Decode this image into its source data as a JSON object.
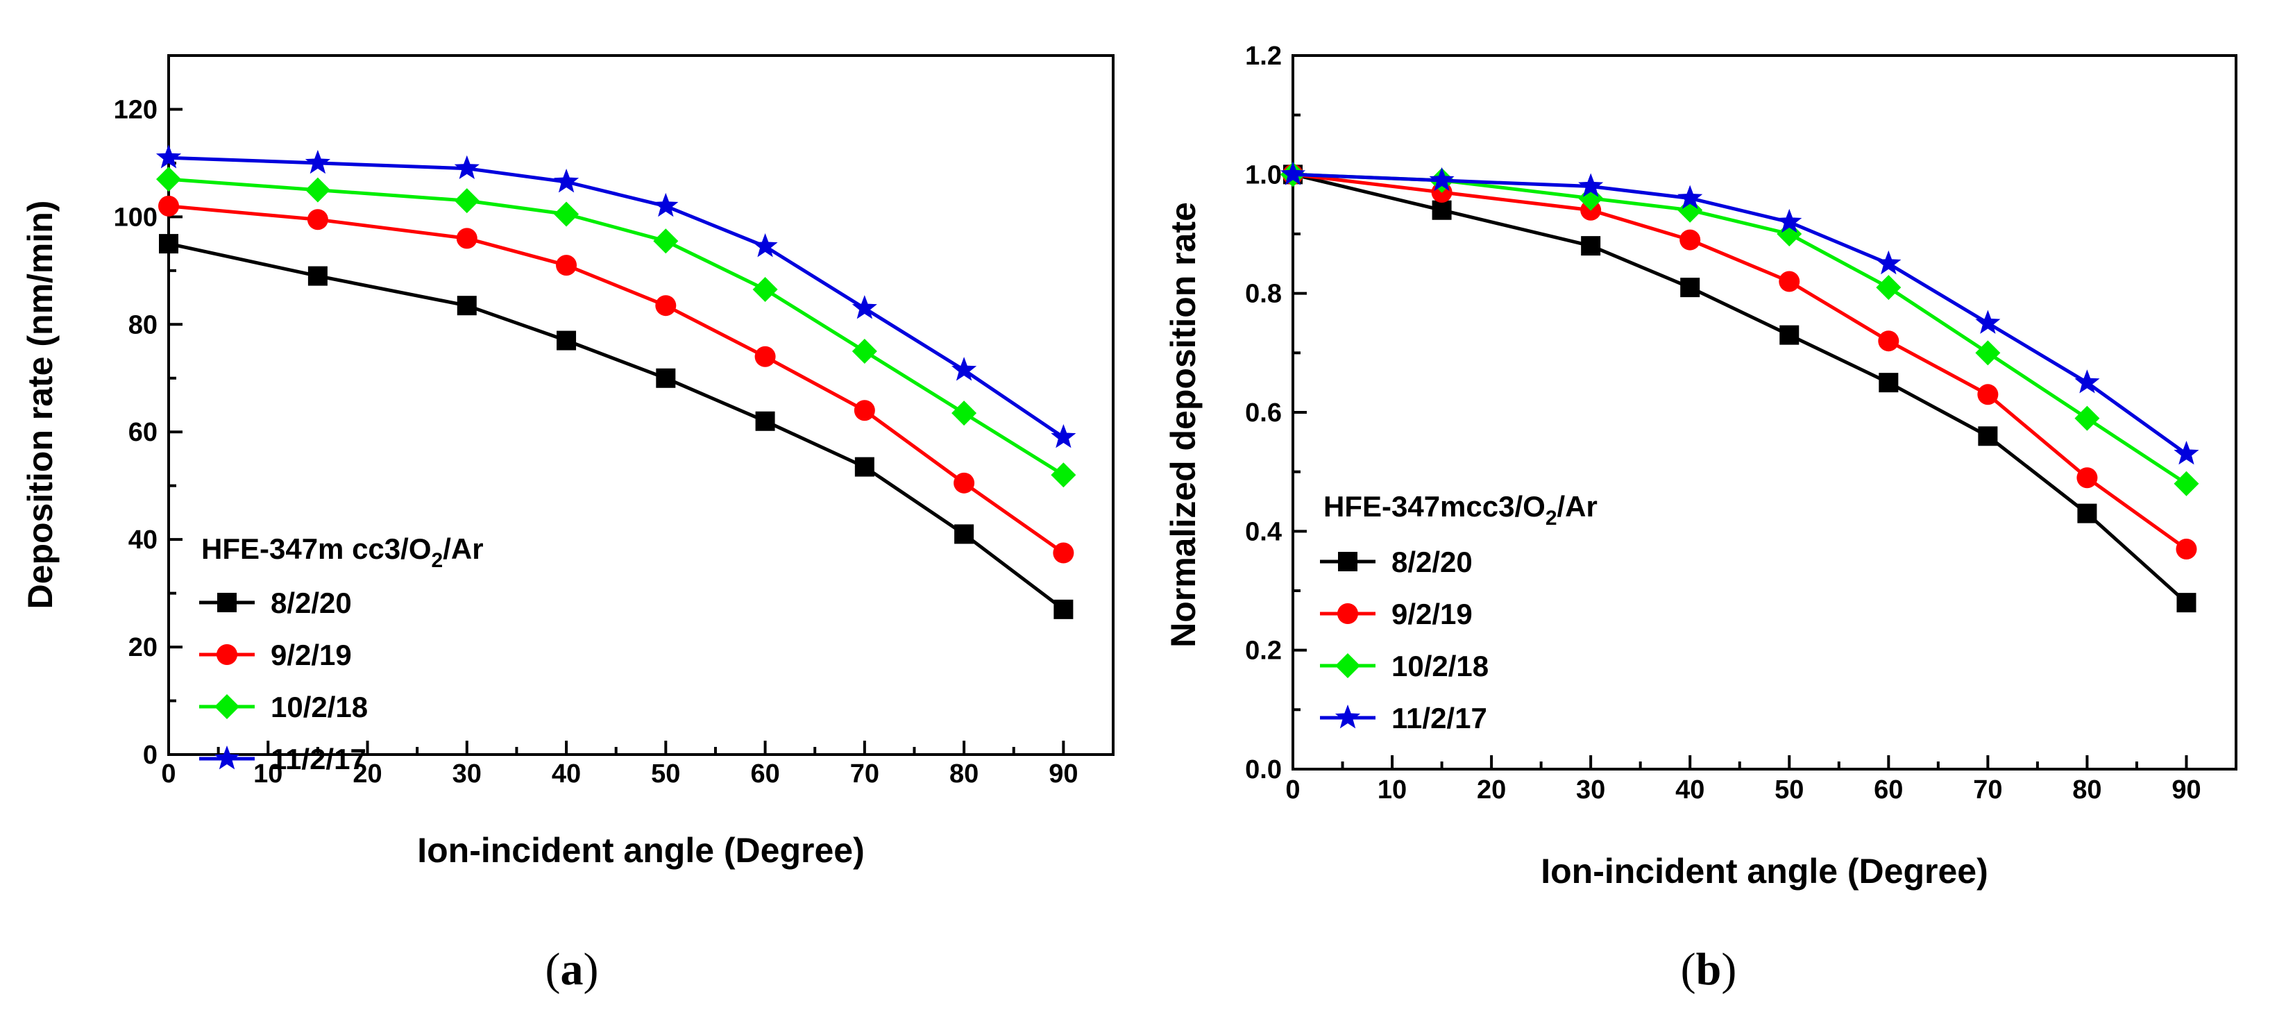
{
  "chart_data": [
    {
      "panel": "a",
      "panel_label_open": "(",
      "panel_label_letter": "a",
      "panel_label_close": ")",
      "type": "line",
      "title": "",
      "xlabel": "Ion-incident angle (Degree)",
      "ylabel": "Deposition rate (nm/min)",
      "xlim": [
        0,
        95
      ],
      "ylim": [
        0,
        130
      ],
      "xticks": [
        0,
        10,
        20,
        30,
        40,
        50,
        60,
        70,
        80,
        90
      ],
      "yticks": [
        0,
        20,
        40,
        60,
        80,
        100,
        120
      ],
      "xtick_labels": [
        "0",
        "10",
        "20",
        "30",
        "40",
        "50",
        "60",
        "70",
        "80",
        "90"
      ],
      "ytick_labels": [
        "0",
        "20",
        "40",
        "60",
        "80",
        "100",
        "120"
      ],
      "grid": false,
      "legend": {
        "placement": "lower-left",
        "title_main": "HFE-347m cc3/O",
        "title_sub": "2",
        "title_end": "/Ar"
      },
      "x": [
        0,
        15,
        30,
        40,
        50,
        60,
        70,
        80,
        90
      ],
      "series": [
        {
          "name": "8/2/20",
          "color": "#000000",
          "marker": "square",
          "values": [
            95,
            89,
            83.5,
            77,
            70,
            62,
            53.5,
            41,
            27
          ]
        },
        {
          "name": "9/2/19",
          "color": "#ff0000",
          "marker": "circle",
          "values": [
            102,
            99.5,
            96,
            91,
            83.5,
            74,
            64,
            50.5,
            37.5
          ]
        },
        {
          "name": "10/2/18",
          "color": "#00ee00",
          "marker": "diamond",
          "values": [
            107,
            105,
            103,
            100.5,
            95.5,
            86.5,
            75,
            63.5,
            52
          ]
        },
        {
          "name": "11/2/17",
          "color": "#0000dd",
          "marker": "star",
          "values": [
            111,
            110,
            109,
            106.5,
            102,
            94.5,
            83,
            71.5,
            59
          ]
        }
      ]
    },
    {
      "panel": "b",
      "panel_label_open": "(",
      "panel_label_letter": "b",
      "panel_label_close": ")",
      "type": "line",
      "title": "",
      "xlabel": "Ion-incident angle (Degree)",
      "ylabel": "Normalized deposition rate",
      "xlim": [
        0,
        95
      ],
      "ylim": [
        0,
        1.2
      ],
      "xticks": [
        0,
        10,
        20,
        30,
        40,
        50,
        60,
        70,
        80,
        90
      ],
      "yticks": [
        0,
        0.2,
        0.4,
        0.6,
        0.8,
        1.0,
        1.2
      ],
      "xtick_labels": [
        "0",
        "10",
        "20",
        "30",
        "40",
        "50",
        "60",
        "70",
        "80",
        "90"
      ],
      "ytick_labels": [
        "0.0",
        "0.2",
        "0.4",
        "0.6",
        "0.8",
        "1.0",
        "1.2"
      ],
      "grid": false,
      "legend": {
        "placement": "lower-left",
        "title_main": "HFE-347mcc3/O",
        "title_sub": "2",
        "title_end": "/Ar"
      },
      "x": [
        0,
        15,
        30,
        40,
        50,
        60,
        70,
        80,
        90
      ],
      "series": [
        {
          "name": "8/2/20",
          "color": "#000000",
          "marker": "square",
          "values": [
            1.0,
            0.94,
            0.88,
            0.81,
            0.73,
            0.65,
            0.56,
            0.43,
            0.28
          ]
        },
        {
          "name": "9/2/19",
          "color": "#ff0000",
          "marker": "circle",
          "values": [
            1.0,
            0.97,
            0.94,
            0.89,
            0.82,
            0.72,
            0.63,
            0.49,
            0.37
          ]
        },
        {
          "name": "10/2/18",
          "color": "#00ee00",
          "marker": "diamond",
          "values": [
            1.0,
            0.99,
            0.96,
            0.94,
            0.9,
            0.81,
            0.7,
            0.59,
            0.48
          ]
        },
        {
          "name": "11/2/17",
          "color": "#0000dd",
          "marker": "star",
          "values": [
            1.0,
            0.99,
            0.98,
            0.96,
            0.92,
            0.85,
            0.75,
            0.65,
            0.53
          ]
        }
      ]
    }
  ]
}
